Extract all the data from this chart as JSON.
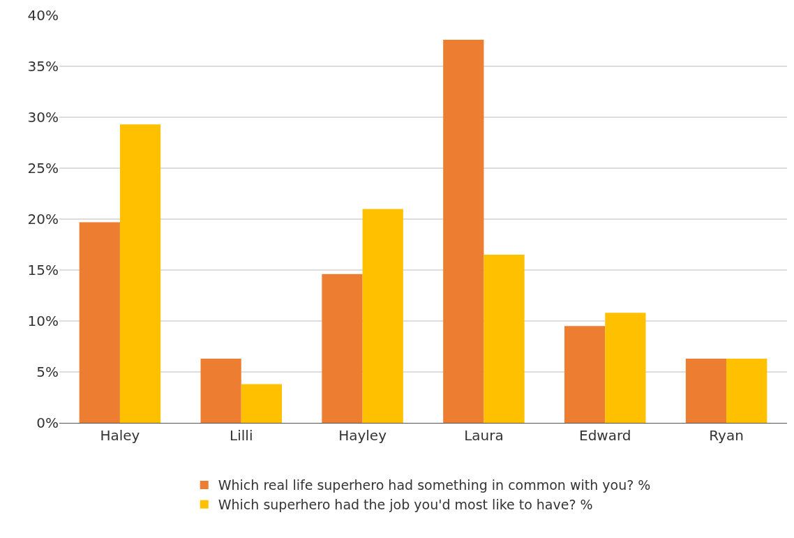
{
  "chart_data": {
    "type": "bar",
    "categories": [
      "Haley",
      "Lilli",
      "Hayley",
      "Laura",
      "Edward",
      "Ryan"
    ],
    "series": [
      {
        "name": "Which real life superhero had something in common with you? %",
        "color": "#ed7d31",
        "values": [
          19.7,
          6.3,
          14.6,
          37.6,
          9.5,
          6.3
        ]
      },
      {
        "name": "Which superhero had the job you'd most like to have? %",
        "color": "#ffc000",
        "values": [
          29.3,
          3.8,
          21.0,
          16.5,
          10.8,
          6.3
        ]
      }
    ],
    "ylim": [
      0,
      40
    ],
    "yticks": [
      {
        "value": 0,
        "label": "0%"
      },
      {
        "value": 5,
        "label": "5%"
      },
      {
        "value": 10,
        "label": "10%"
      },
      {
        "value": 15,
        "label": "15%"
      },
      {
        "value": 20,
        "label": "20%"
      },
      {
        "value": 25,
        "label": "25%"
      },
      {
        "value": 30,
        "label": "30%"
      },
      {
        "value": 35,
        "label": "35%"
      },
      {
        "value": 40,
        "label": "40%"
      }
    ],
    "grid": "y",
    "legend": "bottom"
  }
}
